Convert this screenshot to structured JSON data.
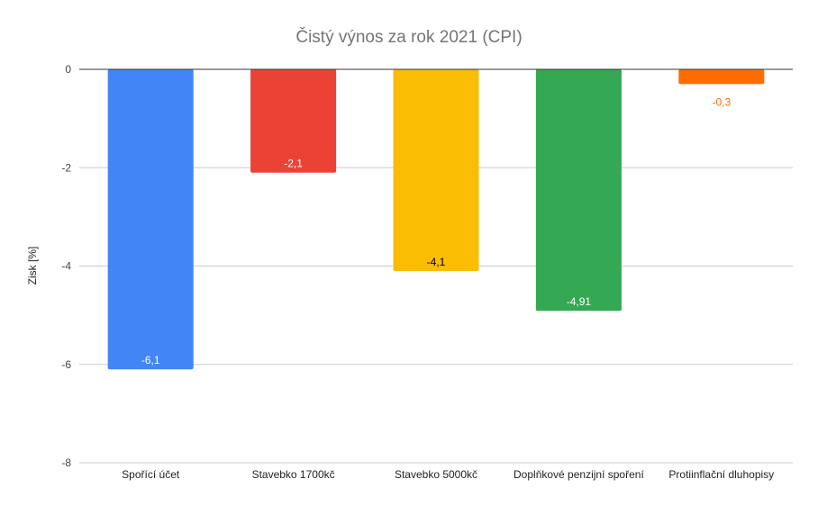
{
  "chart_data": {
    "type": "bar",
    "title": "Čistý výnos za rok 2021 (CPI)",
    "xlabel": "",
    "ylabel": "Zisk [%]",
    "ylim": [
      -8,
      0
    ],
    "yticks": [
      0,
      -2,
      -4,
      -6,
      -8
    ],
    "grid": true,
    "legend": "none",
    "categories": [
      "Spořící účet",
      "Stavebko 1700kč",
      "Stavebko 5000kč",
      "Doplňkové penzijní spoření",
      "Protiinflační dluhopisy"
    ],
    "values": [
      -6.1,
      -2.1,
      -4.1,
      -4.91,
      -0.3
    ],
    "value_labels": [
      "-6,1",
      "-2,1",
      "-4,1",
      "-4,91",
      "-0,3"
    ],
    "colors": [
      "#4285f4",
      "#ea4335",
      "#fbbc04",
      "#34a853",
      "#ff6d01"
    ],
    "label_colors": [
      "#ffffff",
      "#ffffff",
      "#000000",
      "#ffffff",
      "#ff6d01"
    ]
  }
}
